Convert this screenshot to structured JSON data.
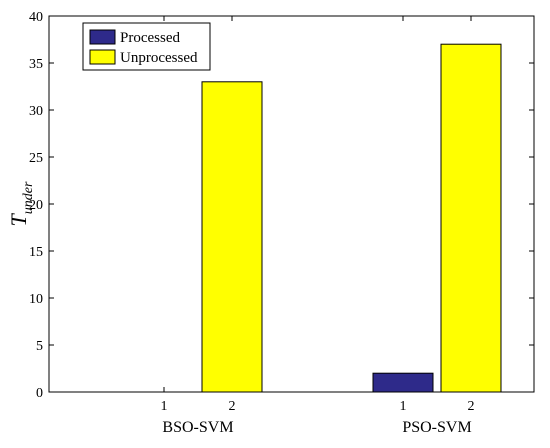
{
  "chart_data": {
    "type": "bar",
    "title": "",
    "ylabel_main": "T",
    "ylabel_sub": "under",
    "ylim": [
      0,
      40
    ],
    "yticks": [
      0,
      5,
      10,
      15,
      20,
      25,
      30,
      35,
      40
    ],
    "groups": [
      {
        "name": "BSO-SVM",
        "ticks": [
          "1",
          "2"
        ]
      },
      {
        "name": "PSO-SVM",
        "ticks": [
          "1",
          "2"
        ]
      }
    ],
    "series": [
      {
        "name": "Processed",
        "color": "#2e2a8a",
        "values": [
          0,
          2
        ]
      },
      {
        "name": "Unprocessed",
        "color": "#ffff00",
        "values": [
          33,
          37
        ]
      }
    ],
    "legend_position": "top-left",
    "grid": false
  }
}
